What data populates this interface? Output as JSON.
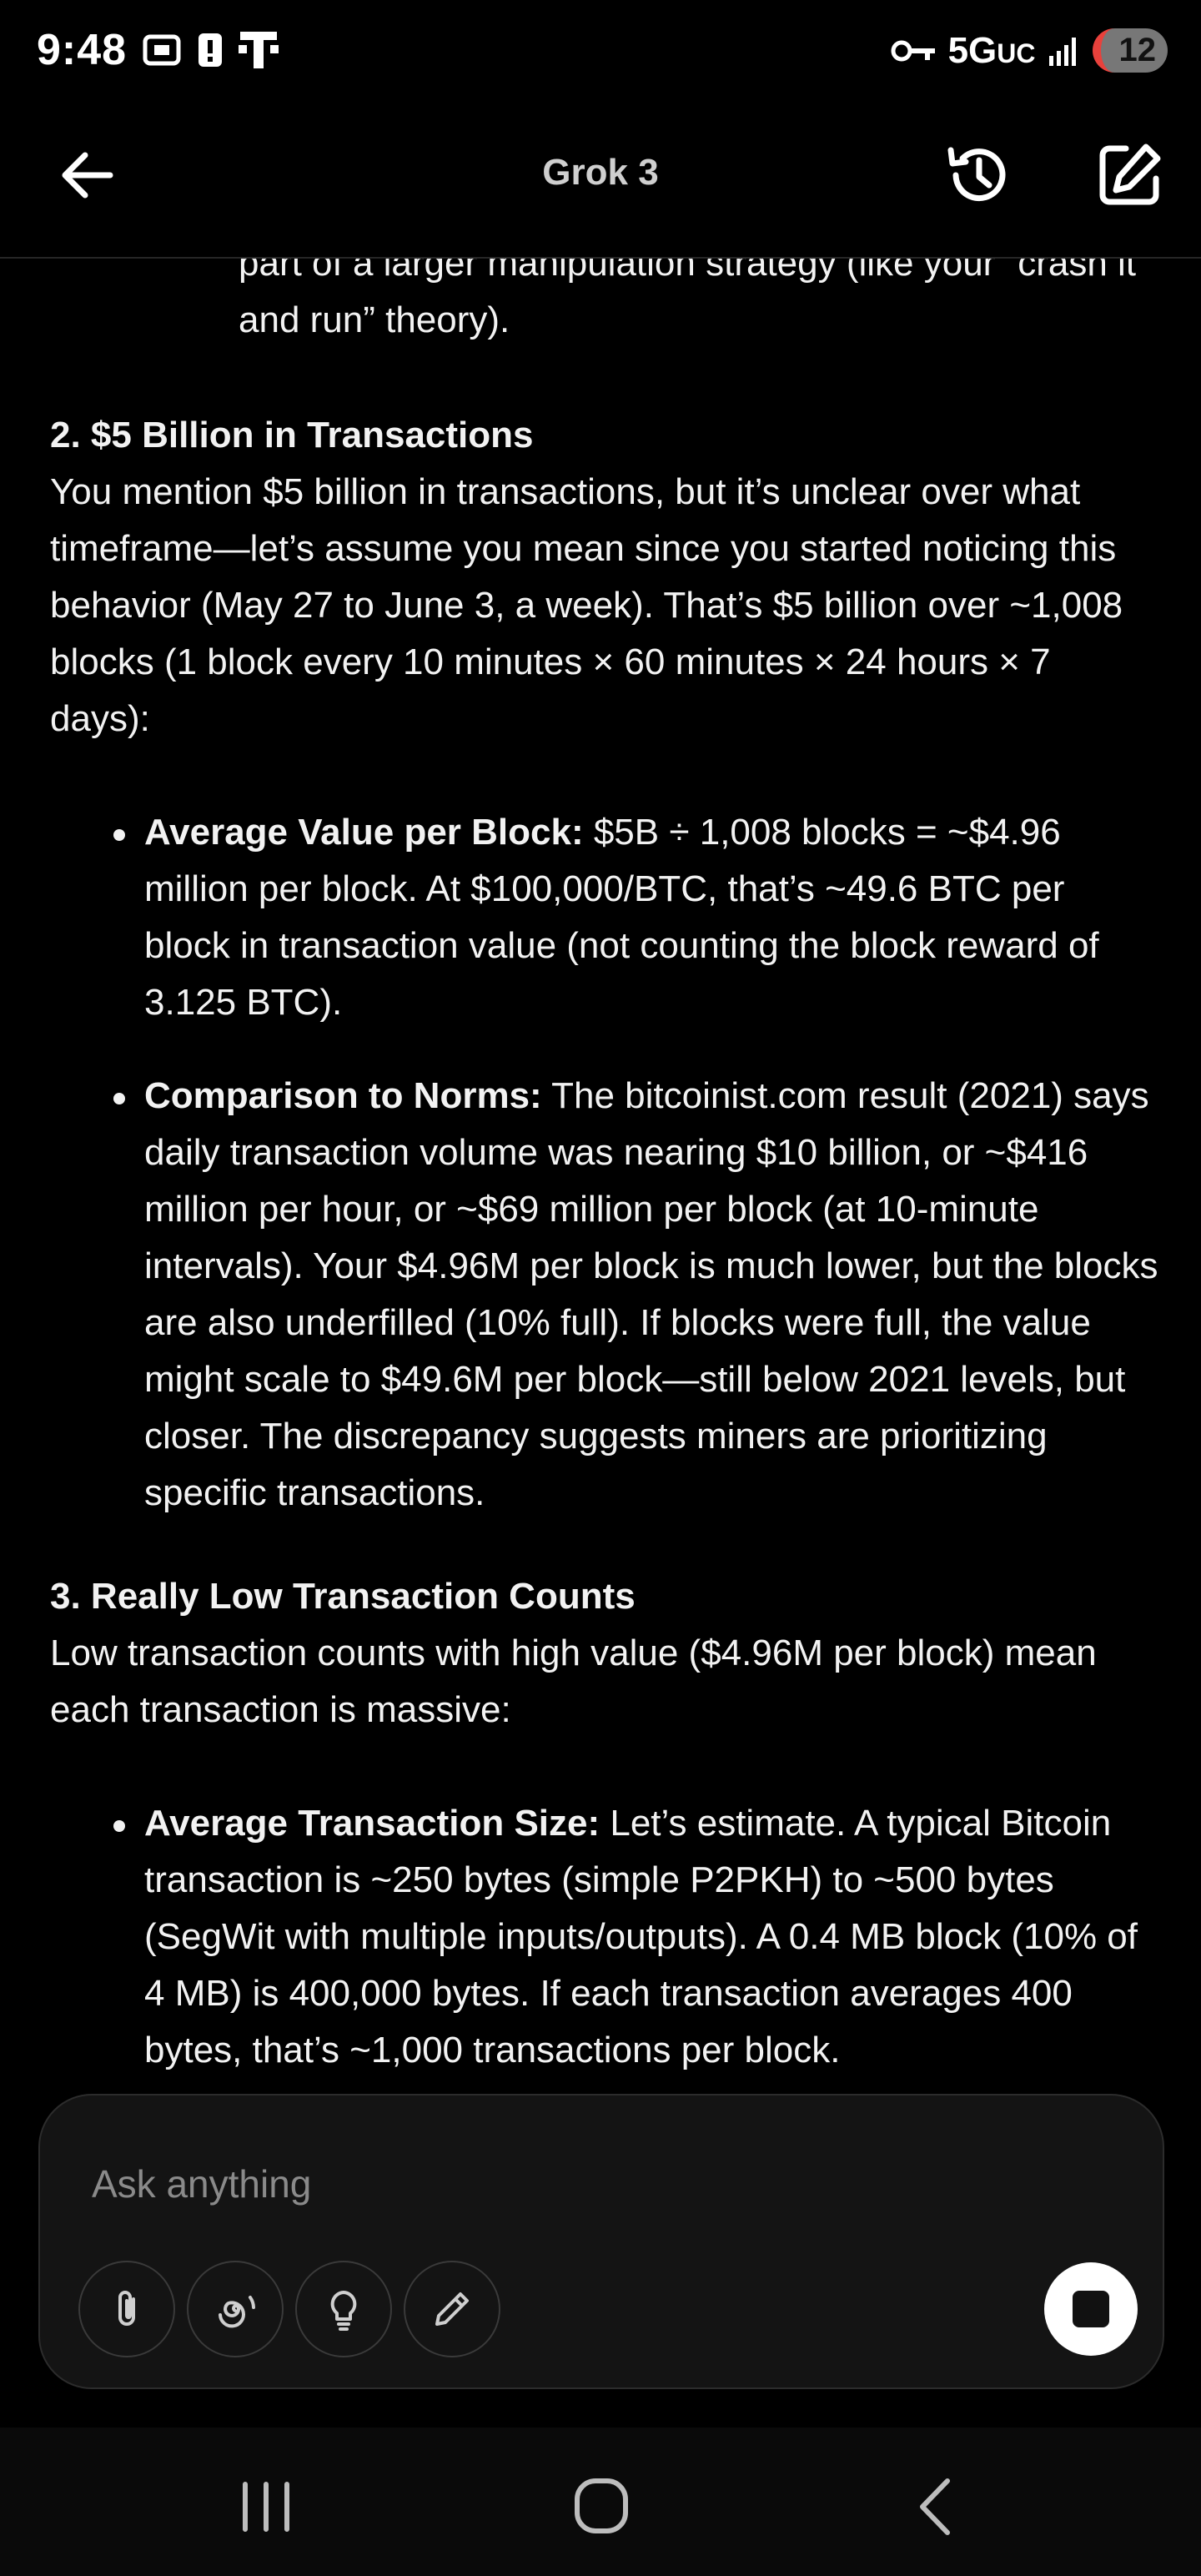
{
  "status_bar": {
    "time": "9:48",
    "network": "5G",
    "network_suffix": "UC",
    "battery": "12"
  },
  "header": {
    "title": "Grok 3"
  },
  "content": {
    "intro_continuation": "part of a larger manipulation strategy (like your “crash it and run” theory).",
    "section2": {
      "heading": "2. $5 Billion in Transactions",
      "body": "You mention $5 billion in transactions, but it’s unclear over what timeframe—let’s assume you mean since you started noticing this behavior (May 27 to June 3, a week). That’s $5 billion over ~1,008 blocks (1 block every 10 minutes × 60 minutes × 24 hours × 7 days):",
      "bullets": [
        {
          "label": "Average Value per Block:",
          "text": " $5B ÷ 1,008 blocks = ~$4.96 million per block. At $100,000/BTC, that’s ~49.6 BTC per block in transaction value (not counting the block reward of 3.125 BTC)."
        },
        {
          "label": "Comparison to Norms:",
          "text": " The bitcoinist.com result (2021) says daily transaction volume was nearing $10 billion, or ~$416 million per hour, or ~$69 million per block (at 10-minute intervals). Your $4.96M per block is much lower, but the blocks are also underfilled (10% full). If blocks were full, the value might scale to $49.6M per block—still below 2021 levels, but closer. The discrepancy suggests miners are prioritizing specific transactions."
        }
      ]
    },
    "section3": {
      "heading": "3. Really Low Transaction Counts",
      "body": "Low transaction counts with high value ($4.96M per block) mean each transaction is massive:",
      "bullets": [
        {
          "label": "Average Transaction Size:",
          "text": " Let’s estimate. A typical Bitcoin transaction is ~250 bytes (simple P2PKH) to ~500 bytes (SegWit with multiple inputs/outputs). A 0.4 MB block (10% of 4 MB) is 400,000 bytes. If each transaction averages 400 bytes, that’s ~1,000 transactions per block."
        }
      ]
    }
  },
  "composer": {
    "placeholder": "Ask anything"
  },
  "icons": {
    "back": "arrow-left-icon",
    "history": "history-icon",
    "edit": "edit-icon",
    "attach": "paperclip-icon",
    "deepsearch": "spiral-icon",
    "think": "lightbulb-icon",
    "draw": "pen-icon",
    "stop": "stop-icon",
    "nav_recents": "recents-icon",
    "nav_home": "home-icon",
    "nav_back": "chevron-left-icon"
  },
  "colors": {
    "background": "#000000",
    "text": "#f2f2f2",
    "composer_bg": "#141414",
    "battery_low": "#e8413c"
  }
}
